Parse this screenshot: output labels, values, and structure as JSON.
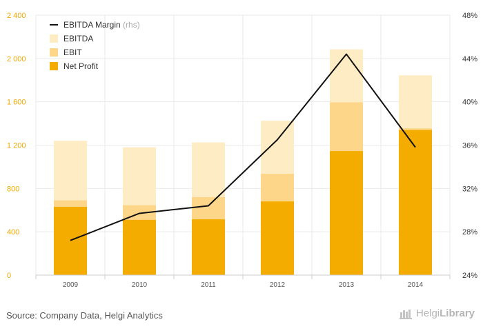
{
  "chart_data": {
    "type": "bar",
    "categories": [
      "2009",
      "2010",
      "2011",
      "2012",
      "2013",
      "2014"
    ],
    "series": [
      {
        "name": "Net Profit",
        "values": [
          630,
          510,
          515,
          680,
          1145,
          1340
        ]
      },
      {
        "name": "EBIT",
        "values": [
          690,
          645,
          720,
          935,
          1595,
          1355
        ]
      },
      {
        "name": "EBITDA",
        "values": [
          1240,
          1180,
          1225,
          1425,
          2085,
          1845
        ]
      },
      {
        "name": "EBITDA Margin",
        "legend_suffix": "(rhs)",
        "type": "line",
        "axis": "right",
        "values": [
          27.2,
          29.7,
          30.4,
          36.5,
          44.4,
          35.8
        ]
      }
    ],
    "left_axis": {
      "min": 0,
      "max": 2400,
      "ticks": [
        "0",
        "400",
        "800",
        "1 200",
        "1 600",
        "2 000",
        "2 400"
      ]
    },
    "right_axis": {
      "min": 24,
      "max": 48,
      "ticks": [
        "24%",
        "28%",
        "32%",
        "36%",
        "40%",
        "44%",
        "48%"
      ]
    },
    "grid": true,
    "legend_position": "top-left"
  },
  "colors": {
    "net_profit": "#f5ac00",
    "ebit": "#fdd68a",
    "ebitda": "#feecc4",
    "margin_line": "#111111",
    "left_tick": "#f0a800",
    "grid": "#e9e9e9"
  },
  "footer": {
    "source": "Source: Company Data, Helgi Analytics",
    "brand_light": "Helgi",
    "brand_bold": "Library"
  }
}
